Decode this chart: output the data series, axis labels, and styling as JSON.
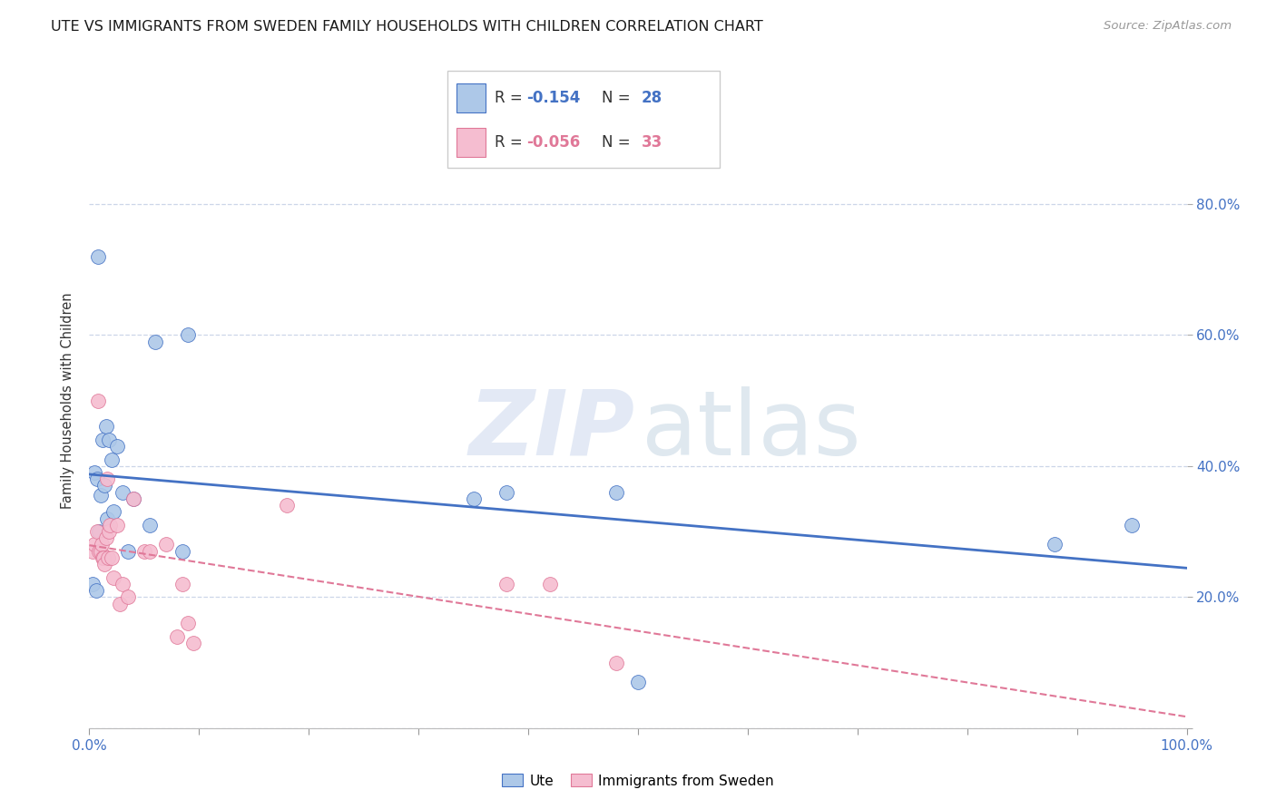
{
  "title": "UTE VS IMMIGRANTS FROM SWEDEN FAMILY HOUSEHOLDS WITH CHILDREN CORRELATION CHART",
  "source": "Source: ZipAtlas.com",
  "ylabel": "Family Households with Children",
  "xlim": [
    0,
    1.0
  ],
  "ylim": [
    0,
    1.0
  ],
  "yticks": [
    0.0,
    0.2,
    0.4,
    0.6,
    0.8
  ],
  "yticklabels_right": [
    "",
    "20.0%",
    "40.0%",
    "60.0%",
    "80.0%"
  ],
  "xticks": [
    0.0,
    0.1,
    0.2,
    0.3,
    0.4,
    0.5,
    0.6,
    0.7,
    0.8,
    0.9,
    1.0
  ],
  "legend_R1": "-0.154",
  "legend_N1": "28",
  "legend_R2": "-0.056",
  "legend_N2": "33",
  "label1": "Ute",
  "label2": "Immigrants from Sweden",
  "color1": "#adc8e8",
  "color2": "#f5bdd0",
  "line_color1": "#4472c4",
  "line_color2": "#e07898",
  "scatter1_x": [
    0.008,
    0.012,
    0.015,
    0.018,
    0.005,
    0.007,
    0.01,
    0.014,
    0.016,
    0.02,
    0.025,
    0.03,
    0.022,
    0.04,
    0.035,
    0.055,
    0.06,
    0.085,
    0.09,
    0.38,
    0.48,
    0.35,
    0.003,
    0.006,
    0.009,
    0.5,
    0.88,
    0.95
  ],
  "scatter1_y": [
    0.72,
    0.44,
    0.46,
    0.44,
    0.39,
    0.38,
    0.355,
    0.37,
    0.32,
    0.41,
    0.43,
    0.36,
    0.33,
    0.35,
    0.27,
    0.31,
    0.59,
    0.27,
    0.6,
    0.36,
    0.36,
    0.35,
    0.22,
    0.21,
    0.3,
    0.07,
    0.28,
    0.31
  ],
  "scatter2_x": [
    0.003,
    0.005,
    0.007,
    0.008,
    0.009,
    0.01,
    0.011,
    0.012,
    0.013,
    0.014,
    0.015,
    0.016,
    0.017,
    0.018,
    0.019,
    0.02,
    0.022,
    0.025,
    0.028,
    0.03,
    0.035,
    0.04,
    0.05,
    0.055,
    0.07,
    0.08,
    0.085,
    0.09,
    0.095,
    0.18,
    0.38,
    0.42,
    0.48
  ],
  "scatter2_y": [
    0.27,
    0.28,
    0.3,
    0.5,
    0.27,
    0.27,
    0.28,
    0.26,
    0.26,
    0.25,
    0.29,
    0.38,
    0.26,
    0.3,
    0.31,
    0.26,
    0.23,
    0.31,
    0.19,
    0.22,
    0.2,
    0.35,
    0.27,
    0.27,
    0.28,
    0.14,
    0.22,
    0.16,
    0.13,
    0.34,
    0.22,
    0.22,
    0.1
  ],
  "bg_color": "#ffffff",
  "grid_color": "#ccd6e8",
  "tick_label_color": "#4472c4",
  "title_fontsize": 11.5,
  "axis_label_fontsize": 10.5,
  "tick_fontsize": 11
}
